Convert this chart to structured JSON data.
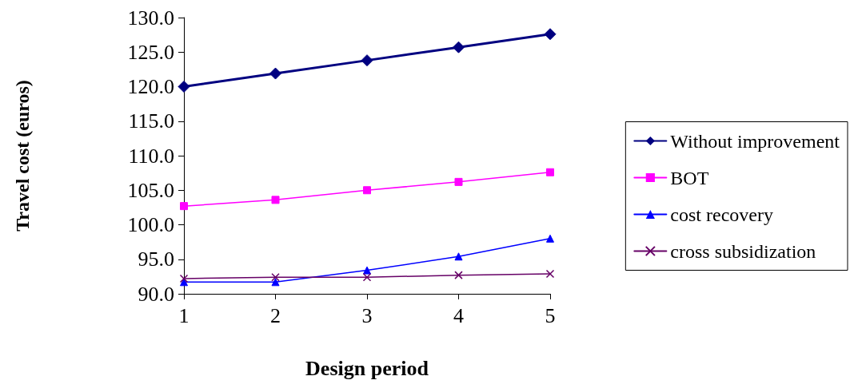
{
  "chart_data": {
    "type": "line",
    "xlabel": "Design period",
    "ylabel": "Travel cost (euros)",
    "categories": [
      "1",
      "2",
      "3",
      "4",
      "5"
    ],
    "series": [
      {
        "name": "Without improvement",
        "color": "#000080",
        "marker": "diamond",
        "values": [
          120.0,
          121.9,
          123.8,
          125.7,
          127.6
        ]
      },
      {
        "name": "BOT",
        "color": "#ff00ff",
        "marker": "square",
        "values": [
          102.7,
          103.6,
          105.0,
          106.2,
          107.6
        ]
      },
      {
        "name": "cost recovery",
        "color": "#0000ff",
        "marker": "triangle",
        "values": [
          91.7,
          91.7,
          93.4,
          95.4,
          98.0
        ]
      },
      {
        "name": "cross subsidization",
        "color": "#660066",
        "marker": "cross",
        "values": [
          92.2,
          92.4,
          92.4,
          92.7,
          92.9
        ]
      }
    ],
    "ylim": [
      90,
      130
    ],
    "yticks": [
      {
        "value": 90,
        "label": "90.0"
      },
      {
        "value": 95,
        "label": "95.0"
      },
      {
        "value": 100,
        "label": "100.0"
      },
      {
        "value": 105,
        "label": "105.0"
      },
      {
        "value": 110,
        "label": "110.0"
      },
      {
        "value": 115,
        "label": "115.0"
      },
      {
        "value": 120,
        "label": "120.0"
      },
      {
        "value": 125,
        "label": "125.0"
      },
      {
        "value": 130,
        "label": "130.0"
      }
    ],
    "grid": false,
    "legend": "right"
  }
}
